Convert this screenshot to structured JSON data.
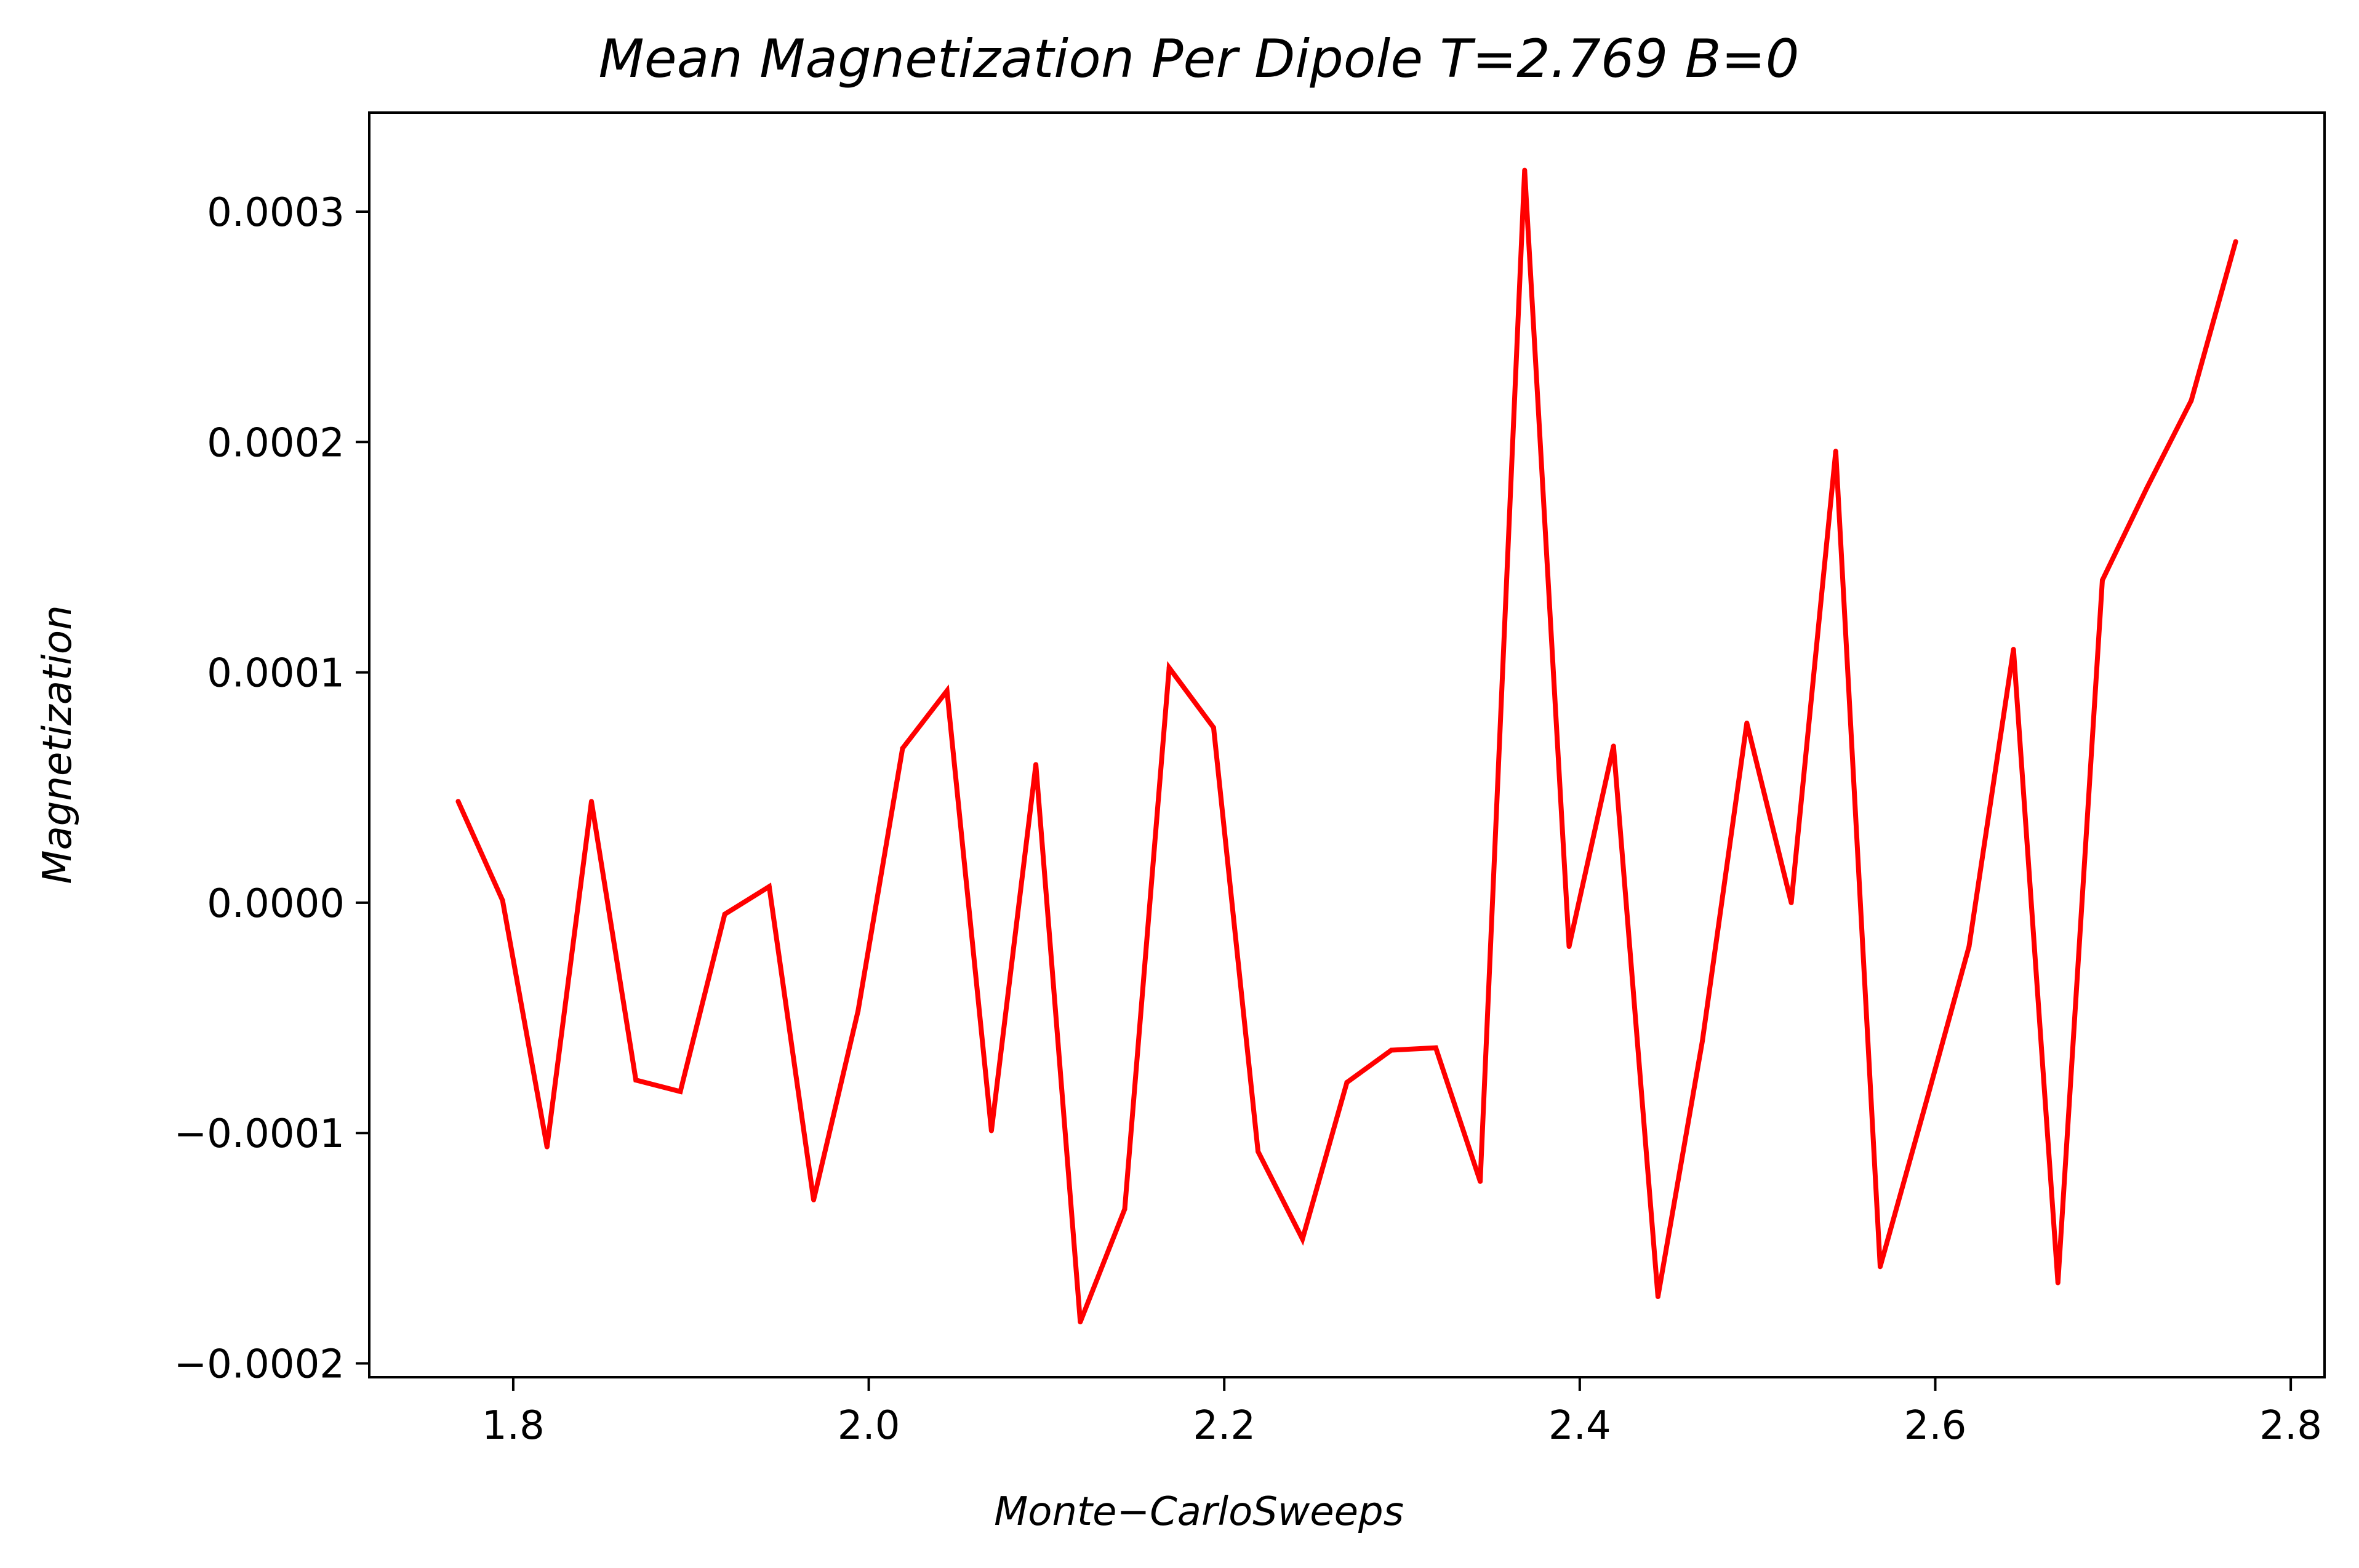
{
  "chart_data": {
    "type": "line",
    "title": "Mean Magnetization Per Dipole T=2.769 B=0",
    "xlabel": "Monte−CarloSweeps",
    "ylabel": "Magnetization",
    "xlim": [
      1.719,
      2.819
    ],
    "ylim": [
      -0.000206,
      0.000343
    ],
    "grid": false,
    "x_ticks": [
      {
        "value": 1.8,
        "label": "1.8"
      },
      {
        "value": 2.0,
        "label": "2.0"
      },
      {
        "value": 2.2,
        "label": "2.2"
      },
      {
        "value": 2.4,
        "label": "2.4"
      },
      {
        "value": 2.6,
        "label": "2.6"
      },
      {
        "value": 2.8,
        "label": "2.8"
      }
    ],
    "y_ticks": [
      {
        "value": -0.0002,
        "label": "−0.0002"
      },
      {
        "value": -0.0001,
        "label": "−0.0001"
      },
      {
        "value": 0.0,
        "label": "0.0000"
      },
      {
        "value": 0.0001,
        "label": "0.0001"
      },
      {
        "value": 0.0002,
        "label": "0.0002"
      },
      {
        "value": 0.0003,
        "label": "0.0003"
      }
    ],
    "series": [
      {
        "color": "#ff0000",
        "x": [
          1.769,
          1.794,
          1.819,
          1.844,
          1.869,
          1.894,
          1.919,
          1.944,
          1.969,
          1.994,
          2.019,
          2.044,
          2.069,
          2.094,
          2.119,
          2.144,
          2.169,
          2.194,
          2.219,
          2.244,
          2.269,
          2.294,
          2.319,
          2.344,
          2.369,
          2.394,
          2.419,
          2.444,
          2.469,
          2.494,
          2.519,
          2.544,
          2.569,
          2.594,
          2.619,
          2.644,
          2.669,
          2.694,
          2.719,
          2.744,
          2.769
        ],
        "y": [
          4.4e-05,
          1e-06,
          -0.000106,
          4.4e-05,
          -7.7e-05,
          -8.2e-05,
          -5e-06,
          7e-06,
          -0.000129,
          -4.7e-05,
          6.7e-05,
          9.2e-05,
          -9.9e-05,
          6e-05,
          -0.000182,
          -0.000133,
          0.000102,
          7.6e-05,
          -0.000108,
          -0.000146,
          -7.8e-05,
          -6.4e-05,
          -6.3e-05,
          -0.000121,
          0.000318,
          -1.9e-05,
          6.8e-05,
          -0.000171,
          -6e-05,
          7.8e-05,
          0.0,
          0.000196,
          -0.000158,
          -8.9e-05,
          -1.9e-05,
          0.00011,
          -0.000165,
          0.00014,
          0.00018,
          0.000218,
          0.000287
        ]
      }
    ]
  }
}
